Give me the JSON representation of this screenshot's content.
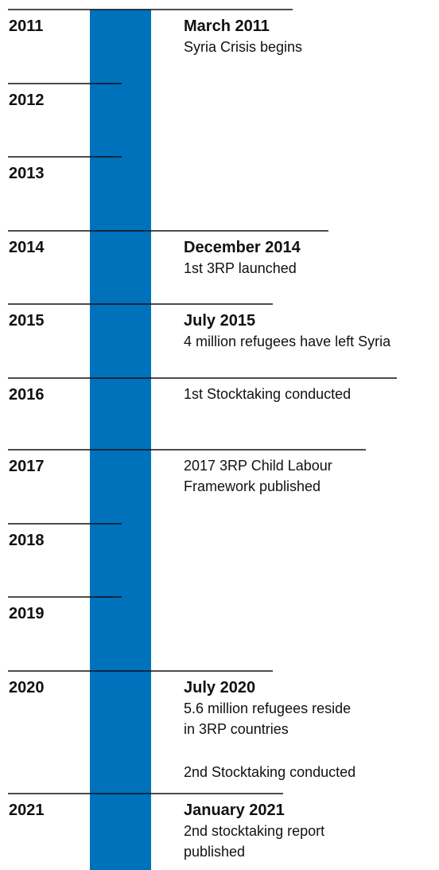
{
  "timeline": {
    "rows": [
      {
        "year": "2011",
        "title": "March 2011",
        "paragraphs": [
          [
            "Syria Crisis begins"
          ]
        ]
      },
      {
        "year": "2012"
      },
      {
        "year": "2013"
      },
      {
        "year": "2014",
        "title": "December 2014",
        "paragraphs": [
          [
            "1st 3RP launched"
          ]
        ]
      },
      {
        "year": "2015",
        "title": "July 2015",
        "paragraphs": [
          [
            "4 million refugees have left Syria"
          ]
        ]
      },
      {
        "year": "2016",
        "paragraphs": [
          [
            "1st Stocktaking conducted"
          ]
        ]
      },
      {
        "year": "2017",
        "paragraphs": [
          [
            "2017 3RP Child Labour",
            "Framework published"
          ]
        ]
      },
      {
        "year": "2018"
      },
      {
        "year": "2019"
      },
      {
        "year": "2020",
        "title": "July 2020",
        "paragraphs": [
          [
            "5.6 million refugees reside",
            "in 3RP countries"
          ],
          [
            "2nd Stocktaking conducted"
          ]
        ]
      },
      {
        "year": "2021",
        "title": "January 2021",
        "paragraphs": [
          [
            "2nd stocktaking report",
            "published"
          ]
        ]
      }
    ]
  }
}
